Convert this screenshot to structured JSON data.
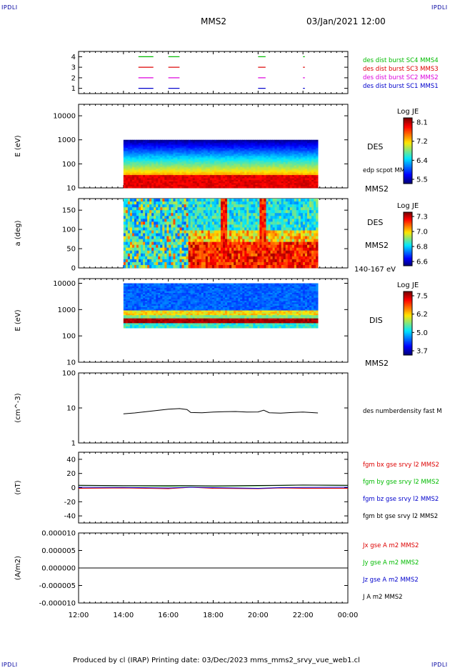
{
  "header": {
    "corner_tl": "IPDLI",
    "corner_tr": "IPDLI",
    "corner_bl": "IPDLI",
    "corner_br": "IPDLI",
    "title": "MMS2",
    "datetime": "03/Jan/2021 12:00"
  },
  "footer": {
    "text": "Produced by cl (IRAP)   Printing date: 03/Dec/2023   mms_mms2_srvy_vue_web1.cl"
  },
  "colors": {
    "sc1": "#0000cc",
    "sc2": "#dd00dd",
    "sc3": "#dd0000",
    "sc4": "#00bb00",
    "black": "#000000"
  },
  "chart_data": [
    {
      "type": "timeline",
      "name": "burst-availability",
      "xlim": [
        "12:00",
        "00:00"
      ],
      "ylim": [
        0.5,
        4.5
      ],
      "yticks": [
        "1",
        "2",
        "3",
        "4"
      ],
      "series": [
        {
          "name": "des dist burst SC1 MMS1",
          "level": 1,
          "color": "#0000cc",
          "intervals": [
            [
              "14:40",
              "15:20"
            ],
            [
              "16:00",
              "16:30"
            ],
            [
              "20:00",
              "20:20"
            ],
            [
              "22:00",
              "22:05"
            ]
          ]
        },
        {
          "name": "des dist burst SC2 MMS2",
          "level": 2,
          "color": "#dd00dd",
          "intervals": [
            [
              "14:40",
              "15:20"
            ],
            [
              "16:00",
              "16:30"
            ],
            [
              "20:00",
              "20:20"
            ],
            [
              "22:00",
              "22:05"
            ]
          ]
        },
        {
          "name": "des dist burst SC3 MMS3",
          "level": 3,
          "color": "#dd0000",
          "intervals": [
            [
              "14:40",
              "15:20"
            ],
            [
              "16:00",
              "16:30"
            ],
            [
              "20:00",
              "20:20"
            ],
            [
              "22:00",
              "22:05"
            ]
          ]
        },
        {
          "name": "des dist burst SC4 MMS4",
          "level": 4,
          "color": "#00bb00",
          "intervals": [
            [
              "14:40",
              "15:20"
            ],
            [
              "16:00",
              "16:30"
            ],
            [
              "20:00",
              "20:20"
            ],
            [
              "22:00",
              "22:05"
            ]
          ]
        }
      ]
    },
    {
      "type": "heatmap",
      "name": "des-energy-spectrogram",
      "ylabel": "E (eV)",
      "yscale": "log",
      "ylim": [
        10,
        30000
      ],
      "yticks": [
        "10",
        "100",
        "1000",
        "10000"
      ],
      "data_range": [
        "14:00",
        "22:40"
      ],
      "data_y": [
        10,
        1000
      ],
      "label": "DES",
      "label2": "MMS2",
      "overlay_label": "edp scpot MMS2",
      "colorbar": {
        "title": "Log JE",
        "ticks": [
          "8.1",
          "7.2",
          "6.4",
          "5.5"
        ]
      }
    },
    {
      "type": "heatmap",
      "name": "des-pitch-angle",
      "ylabel": "a (deg)",
      "ylim": [
        0,
        180
      ],
      "yticks": [
        "0",
        "50",
        "100",
        "150"
      ],
      "data_range": [
        "14:00",
        "22:40"
      ],
      "label": "DES",
      "label2": "MMS2",
      "energy_label": "140-167 eV",
      "colorbar": {
        "title": "Log JE",
        "ticks": [
          "7.3",
          "7.0",
          "6.8",
          "6.6"
        ]
      }
    },
    {
      "type": "heatmap",
      "name": "dis-energy-spectrogram",
      "ylabel": "E (eV)",
      "yscale": "log",
      "ylim": [
        10,
        15000
      ],
      "yticks": [
        "10",
        "100",
        "1000",
        "10000"
      ],
      "data_range": [
        "14:00",
        "22:40"
      ],
      "data_y": [
        200,
        10000
      ],
      "label": "DIS",
      "label2": "MMS2",
      "colorbar": {
        "title": "Log JE",
        "ticks": [
          "7.5",
          "6.2",
          "5.0",
          "3.7"
        ]
      }
    },
    {
      "type": "line",
      "name": "des-numberdensity",
      "ylabel": "(cm^-3)",
      "yscale": "log",
      "ylim": [
        1,
        100
      ],
      "yticks": [
        "1",
        "10",
        "100"
      ],
      "series": [
        {
          "name": "des numberdensity fast M",
          "color": "#000000",
          "x": [
            "14:00",
            "14:30",
            "15:00",
            "15:30",
            "16:00",
            "16:30",
            "16:50",
            "17:00",
            "17:30",
            "18:00",
            "18:30",
            "19:00",
            "19:30",
            "20:00",
            "20:15",
            "20:30",
            "21:00",
            "21:30",
            "22:00",
            "22:40"
          ],
          "y": [
            6.8,
            7.2,
            7.8,
            8.5,
            9.2,
            9.6,
            9.0,
            7.4,
            7.3,
            7.6,
            7.8,
            7.9,
            7.6,
            7.7,
            8.6,
            7.3,
            7.1,
            7.4,
            7.6,
            7.2
          ]
        }
      ]
    },
    {
      "type": "line",
      "name": "fgm-magnetic-field",
      "ylabel": "(nT)",
      "ylim": [
        -50,
        50
      ],
      "yticks": [
        "-40",
        "-20",
        "0",
        "20",
        "40"
      ],
      "series": [
        {
          "name": "fgm bx gse srvy l2 MMS2",
          "color": "#dd0000",
          "x": [
            "12:00",
            "14:00",
            "16:00",
            "17:00",
            "18:00",
            "20:00",
            "21:00",
            "22:00",
            "00:00"
          ],
          "y": [
            -1,
            -0.5,
            -1.5,
            0.5,
            -1,
            -1.5,
            -0.5,
            -1,
            -1
          ]
        },
        {
          "name": "fgm by gse srvy l2 MMS2",
          "color": "#00bb00",
          "x": [
            "12:00",
            "14:00",
            "16:00",
            "17:00",
            "18:00",
            "20:00",
            "21:00",
            "22:00",
            "00:00"
          ],
          "y": [
            3,
            2.5,
            2,
            2.5,
            2,
            2.5,
            3,
            3.5,
            3
          ]
        },
        {
          "name": "fgm bz gse srvy l2 MMS2",
          "color": "#0000cc",
          "x": [
            "12:00",
            "14:00",
            "16:00",
            "17:00",
            "18:00",
            "20:00",
            "21:00",
            "22:00",
            "00:00"
          ],
          "y": [
            0.5,
            0.2,
            -0.5,
            0.5,
            0,
            -1,
            0,
            0.2,
            0.5
          ]
        },
        {
          "name": "fgm bt gse srvy l2 MMS2",
          "color": "#000000",
          "x": [
            "12:00",
            "14:00",
            "16:00",
            "17:00",
            "18:00",
            "20:00",
            "21:00",
            "22:00",
            "00:00"
          ],
          "y": [
            3.2,
            2.8,
            2.6,
            2.8,
            2.4,
            3.0,
            3.2,
            3.6,
            3.3
          ]
        }
      ]
    },
    {
      "type": "line",
      "name": "current-density",
      "ylabel": "(A/m2)",
      "ylim": [
        -1e-05,
        1e-05
      ],
      "yticks": [
        "-0.000010",
        "-0.000005",
        "0.000000",
        "0.000005",
        "0.000010"
      ],
      "series": [
        {
          "name": "Jx gse A m2 MMS2",
          "color": "#dd0000",
          "x": [
            "12:00",
            "00:00"
          ],
          "y": [
            0,
            0
          ]
        },
        {
          "name": "Jy gse A m2 MMS2",
          "color": "#00bb00",
          "x": [
            "12:00",
            "00:00"
          ],
          "y": [
            0,
            0
          ]
        },
        {
          "name": "Jz gse A m2 MMS2",
          "color": "#0000cc",
          "x": [
            "12:00",
            "00:00"
          ],
          "y": [
            0,
            0
          ]
        },
        {
          "name": "J A m2 MMS2",
          "color": "#000000",
          "x": [
            "12:00",
            "00:00"
          ],
          "y": [
            0,
            0
          ]
        }
      ]
    }
  ],
  "xaxis": {
    "ticks": [
      "12:00",
      "14:00",
      "16:00",
      "18:00",
      "20:00",
      "22:00",
      "00:00"
    ]
  }
}
